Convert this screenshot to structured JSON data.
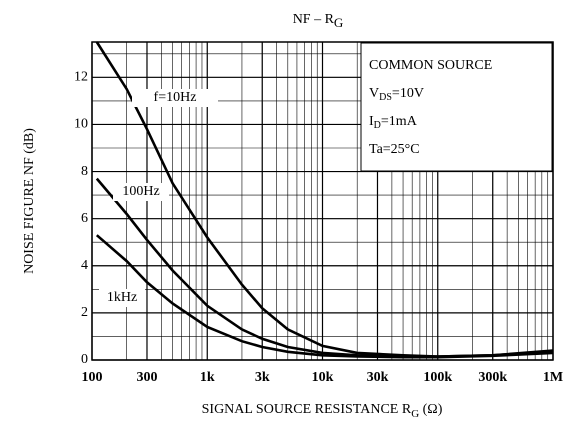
{
  "chart_data": {
    "type": "line",
    "title": [
      {
        "t": "NF  –  R"
      },
      {
        "t": "G",
        "sub": true
      }
    ],
    "xlabel": [
      {
        "t": "SIGNAL SOURCE RESISTANCE  R"
      },
      {
        "t": "G",
        "sub": true
      },
      {
        "t": "  (Ω)"
      }
    ],
    "ylabel": "NOISE FIGURE   NF   (dB)",
    "xscale": "log",
    "grid": true,
    "xlim": [
      100,
      1000000
    ],
    "ylim": [
      0,
      13.5
    ],
    "xticks": [
      100,
      300,
      {
        "value": 1000,
        "label": "1k"
      },
      {
        "value": 3000,
        "label": "3k"
      },
      {
        "value": 10000,
        "label": "10k"
      },
      {
        "value": 30000,
        "label": "30k"
      },
      {
        "value": 100000,
        "label": "100k"
      },
      {
        "value": 300000,
        "label": "300k"
      },
      {
        "value": 1000000,
        "label": "1M"
      }
    ],
    "yticks": [
      0,
      2,
      4,
      6,
      8,
      10,
      12
    ],
    "annotations": [
      [
        {
          "t": "COMMON SOURCE"
        }
      ],
      [
        {
          "t": "V"
        },
        {
          "t": "DS",
          "sub": true
        },
        {
          "t": "=10V"
        }
      ],
      [
        {
          "t": "I"
        },
        {
          "t": "D",
          "sub": true
        },
        {
          "t": "=1mA"
        }
      ],
      [
        {
          "t": "Ta=25°C"
        }
      ]
    ],
    "x": [
      110,
      200,
      300,
      500,
      1000,
      2000,
      3000,
      5000,
      10000,
      20000,
      50000,
      100000,
      300000,
      1000000
    ],
    "series": [
      {
        "name": "f=10Hz",
        "color": "#000000",
        "values": [
          13.5,
          11.5,
          9.8,
          7.5,
          5.2,
          3.2,
          2.2,
          1.3,
          0.6,
          0.3,
          0.2,
          0.15,
          0.2,
          0.4
        ]
      },
      {
        "name": "100Hz",
        "color": "#000000",
        "values": [
          7.7,
          6.2,
          5.1,
          3.8,
          2.3,
          1.3,
          0.9,
          0.55,
          0.3,
          0.2,
          0.15,
          0.15,
          0.2,
          0.35
        ]
      },
      {
        "name": "1kHz",
        "color": "#000000",
        "values": [
          5.3,
          4.2,
          3.3,
          2.4,
          1.4,
          0.8,
          0.55,
          0.35,
          0.2,
          0.15,
          0.12,
          0.12,
          0.18,
          0.3
        ]
      }
    ]
  }
}
